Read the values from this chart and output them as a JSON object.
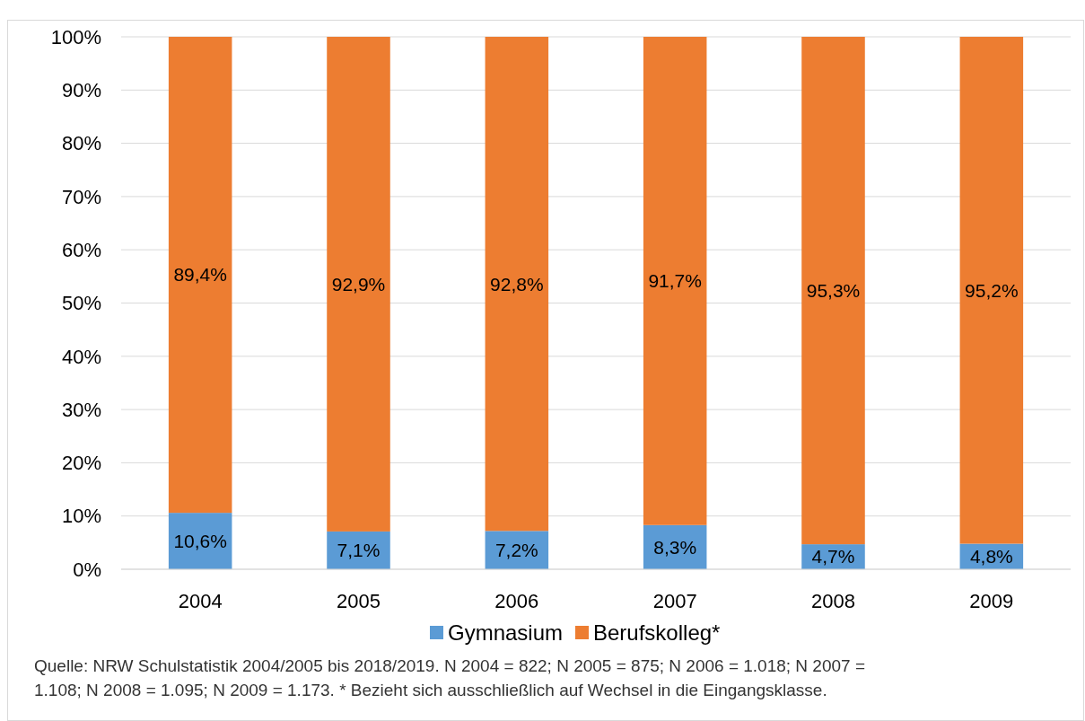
{
  "chart_data": {
    "type": "bar",
    "stacked": true,
    "categories": [
      "2004",
      "2005",
      "2006",
      "2007",
      "2008",
      "2009"
    ],
    "series": [
      {
        "name": "Gymnasium",
        "color": "#5b9bd5",
        "values": [
          10.6,
          7.1,
          7.2,
          8.3,
          4.7,
          4.8
        ],
        "value_labels": [
          "10,6%",
          "7,1%",
          "7,2%",
          "8,3%",
          "4,7%",
          "4,8%"
        ]
      },
      {
        "name": "Berufskolleg*",
        "color": "#ed7d31",
        "values": [
          89.4,
          92.9,
          92.8,
          91.7,
          95.3,
          95.2
        ],
        "value_labels": [
          "89,4%",
          "92,9%",
          "92,8%",
          "91,7%",
          "95,3%",
          "95,2%"
        ]
      }
    ],
    "ylim": [
      0,
      100
    ],
    "yticks": [
      {
        "value": 0,
        "label": "0%"
      },
      {
        "value": 10,
        "label": "10%"
      },
      {
        "value": 20,
        "label": "20%"
      },
      {
        "value": 30,
        "label": "30%"
      },
      {
        "value": 40,
        "label": "40%"
      },
      {
        "value": 50,
        "label": "50%"
      },
      {
        "value": 60,
        "label": "60%"
      },
      {
        "value": 70,
        "label": "70%"
      },
      {
        "value": 80,
        "label": "80%"
      },
      {
        "value": 90,
        "label": "90%"
      },
      {
        "value": 100,
        "label": "100%"
      }
    ],
    "grid": "y",
    "legend": "bottom",
    "annotations": [
      "Quelle: NRW Schulstatistik 2004/2005 bis 2018/2019. N 2004 = 822; N 2005 = 875; N 2006 = 1.018; N 2007 = 1.108; N 2008 = 1.095; N 2009 = 1.173. * Bezieht sich ausschließlich auf Wechsel in die Eingangsklasse."
    ]
  }
}
